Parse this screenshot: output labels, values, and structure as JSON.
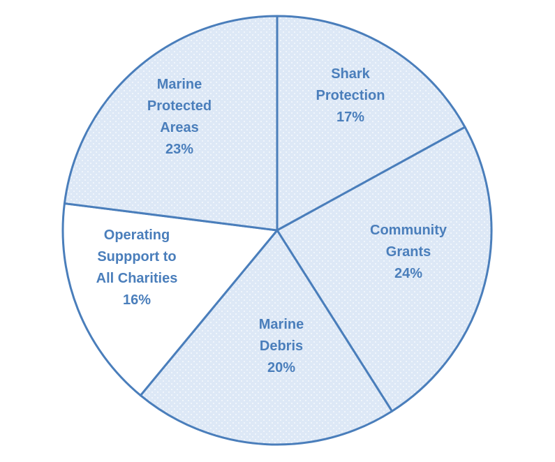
{
  "chart_data": {
    "type": "pie",
    "start_angle_deg": 0,
    "direction": "clockwise",
    "colors": {
      "stroke": "#4a7ebb",
      "dotted_fill": "#dde8f6",
      "dot": "#ffffff",
      "plain_fill": "#ffffff",
      "label": "#4a7ebb"
    },
    "slices": [
      {
        "label_lines": [
          "Shark",
          "Protection"
        ],
        "value": 17,
        "value_label": "17%",
        "pattern": "dotted"
      },
      {
        "label_lines": [
          "Community",
          "Grants"
        ],
        "value": 24,
        "value_label": "24%",
        "pattern": "dotted"
      },
      {
        "label_lines": [
          "Marine",
          "Debris"
        ],
        "value": 20,
        "value_label": "20%",
        "pattern": "dotted"
      },
      {
        "label_lines": [
          "Operating",
          "Suppport to",
          "All Charities"
        ],
        "value": 16,
        "value_label": "16%",
        "pattern": "plain"
      },
      {
        "label_lines": [
          "Marine",
          "Protected",
          "Areas"
        ],
        "value": 23,
        "value_label": "23%",
        "pattern": "dotted"
      }
    ]
  }
}
